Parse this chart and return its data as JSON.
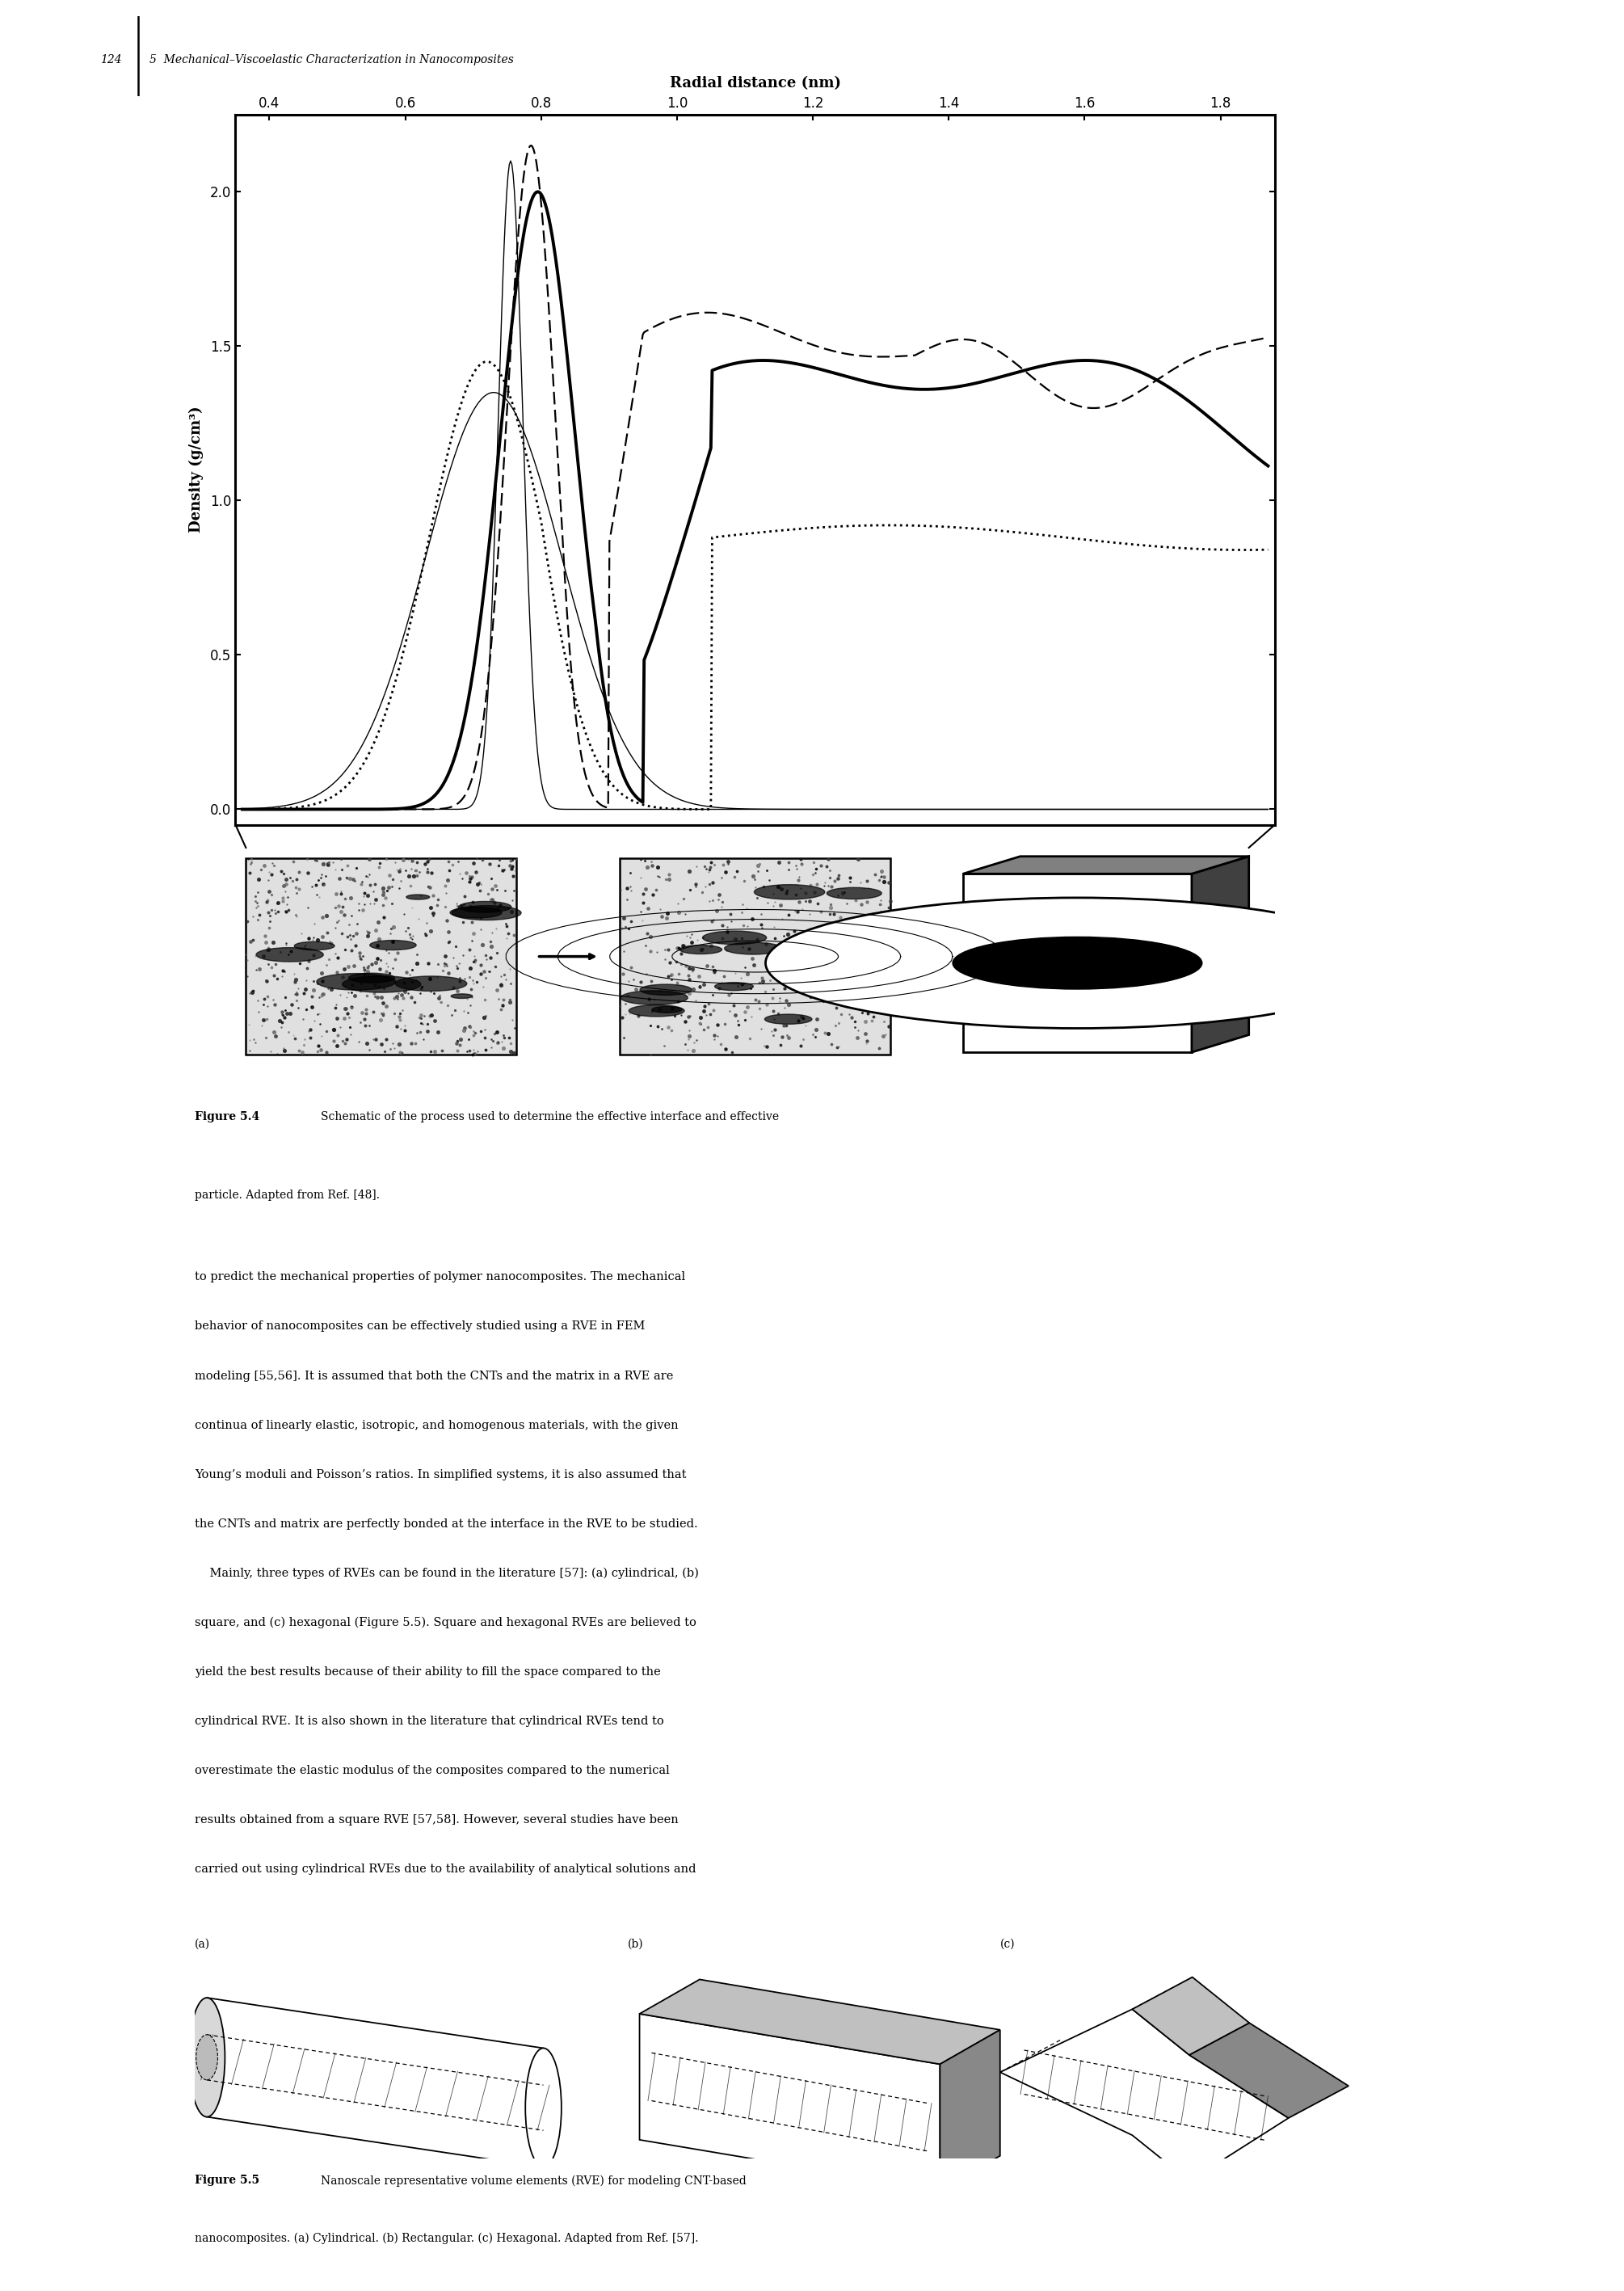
{
  "page_width": 20.1,
  "page_height": 28.35,
  "background_color": "#ffffff",
  "header_page": "124",
  "header_chapter": "5  Mechanical–Viscoelastic Characterization in Nanocomposites",
  "fig44_caption_bold": "Figure 5.4",
  "fig44_caption_rest": "   Schematic of the process used to determine the effective interface and effective\nparticle. Adapted from Ref. [48].",
  "body_text": [
    "to predict the mechanical properties of polymer nanocomposites. The mechanical",
    "behavior of nanocomposites can be effectively studied using a RVE in FEM",
    "modeling [55,56]. It is assumed that both the CNTs and the matrix in a RVE are",
    "continua of linearly elastic, isotropic, and homogenous materials, with the given",
    "Young’s moduli and Poisson’s ratios. In simplified systems, it is also assumed that",
    "the CNTs and matrix are perfectly bonded at the interface in the RVE to be studied.",
    "    Mainly, three types of RVEs can be found in the literature [57]: (a) cylindrical, (b)",
    "square, and (c) hexagonal (Figure 5.5). Square and hexagonal RVEs are believed to",
    "yield the best results because of their ability to fill the space compared to the",
    "cylindrical RVE. It is also shown in the literature that cylindrical RVEs tend to",
    "overestimate the elastic modulus of the composites compared to the numerical",
    "results obtained from a square RVE [57,58]. However, several studies have been",
    "carried out using cylindrical RVEs due to the availability of analytical solutions and"
  ],
  "fig55_caption_bold": "Figure 5.5",
  "fig55_caption_rest": "   Nanoscale representative volume elements (RVE) for modeling CNT-based\nnanocomposites. (a) Cylindrical. (b) Rectangular. (c) Hexagonal. Adapted from Ref. [57].",
  "fig44_xlabel": "Radial distance (nm)",
  "fig44_ylabel": "Density (g/cm³)",
  "fig44_xticks": [
    0.4,
    0.6,
    0.8,
    1.0,
    1.2,
    1.4,
    1.6,
    1.8
  ],
  "fig44_yticks": [
    0.0,
    0.5,
    1.0,
    1.5,
    2.0
  ],
  "fig44_xlim": [
    0.35,
    1.88
  ],
  "fig44_ylim": [
    -0.05,
    2.25
  ]
}
